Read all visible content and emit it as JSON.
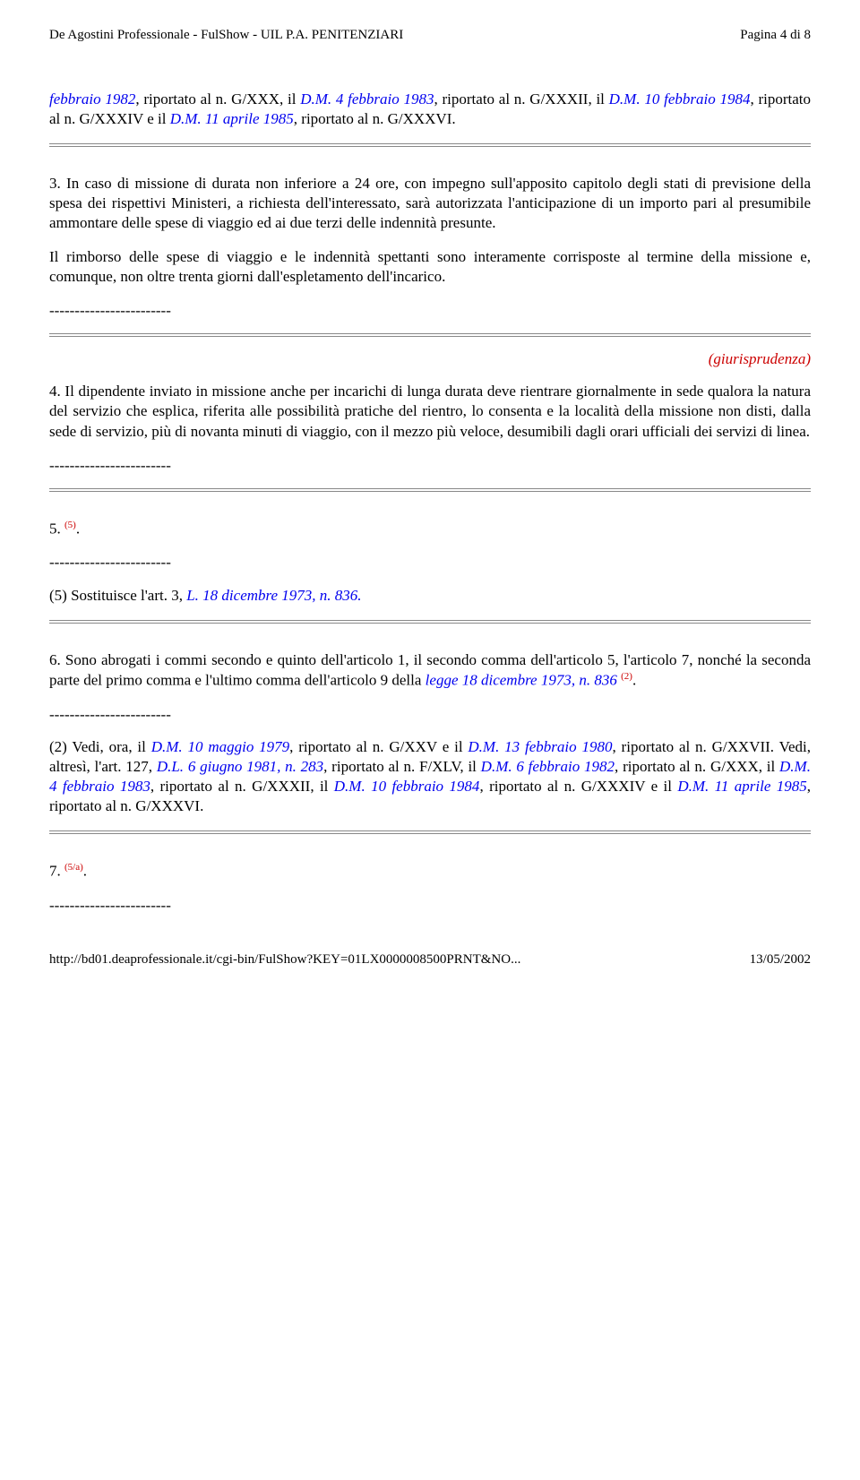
{
  "header": {
    "left": "De Agostini Professionale - FulShow - UIL P.A. PENITENZIARI",
    "right": "Pagina 4 di 8"
  },
  "intro": {
    "p1a": "febbraio 1982",
    "p1b": ", riportato al n. G/XXX, il ",
    "p1c": "D.M. 4 febbraio 1983",
    "p1d": ", riportato al n. G/XXXII, il ",
    "p1e": "D.M. 10 febbraio 1984",
    "p1f": ", riportato al n. G/XXXIV e il ",
    "p1g": "D.M. 11 aprile 1985",
    "p1h": ", riportato al n. G/XXXVI."
  },
  "art3": {
    "p1": "3. In caso di missione di durata non inferiore a 24 ore, con impegno sull'apposito capitolo degli stati di previsione della spesa dei rispettivi Ministeri, a richiesta dell'interessato, sarà autorizzata l'anticipazione di un importo pari al presumibile ammontare delle spese di viaggio ed ai due terzi delle indennità presunte.",
    "p2": "Il rimborso delle spese di viaggio e le indennità spettanti sono interamente corrisposte al termine della missione e, comunque, non oltre trenta giorni dall'espletamento dell'incarico."
  },
  "dashes": "------------------------",
  "giuris": "(giurisprudenza)",
  "art4": {
    "p1": "4. Il dipendente inviato in missione anche per incarichi di lunga durata deve rientrare giornalmente in sede qualora la natura del servizio che esplica, riferita alle possibilità pratiche del rientro, lo consenta e la località della missione non disti, dalla sede di servizio, più di novanta minuti di viaggio, con il mezzo più veloce, desumibili dagli orari ufficiali dei servizi di linea."
  },
  "art5": {
    "num": "5.",
    "sup": "(5)",
    "dot": ".",
    "note_a": "(5) Sostituisce l'art. 3, ",
    "note_b": "L. 18 dicembre 1973, n. 836."
  },
  "art6": {
    "p1a": "6. Sono abrogati i commi secondo e quinto dell'articolo 1, il secondo comma dell'articolo 5, l'articolo 7, nonché la seconda parte del primo comma e l'ultimo comma dell'articolo 9 della ",
    "p1b": "legge 18 dicembre 1973, n. 836",
    "p1c": " ",
    "p1sup": "(2)",
    "p1d": ".",
    "n2a": "(2) Vedi, ora, il ",
    "n2b": "D.M. 10 maggio 1979",
    "n2c": ", riportato al n. G/XXV e il ",
    "n2d": "D.M. 13 febbraio 1980",
    "n2e": ", riportato al n. G/XXVII. Vedi, altresì, l'art. 127, ",
    "n2f": "D.L. 6 giugno 1981, n. 283",
    "n2g": ", riportato al n. F/XLV, il ",
    "n2h": "D.M. 6 febbraio 1982",
    "n2i": ", riportato al n. G/XXX, il ",
    "n2j": "D.M. 4 febbraio 1983",
    "n2k": ", riportato al n. G/XXXII, il ",
    "n2l": "D.M. 10 febbraio 1984",
    "n2m": ", riportato al n. G/XXXIV e il ",
    "n2n": "D.M. 11 aprile 1985",
    "n2o": ", riportato al n. G/XXXVI."
  },
  "art7": {
    "num": "7.",
    "sup": "(5/a)",
    "dot": "."
  },
  "footer": {
    "left": "http://bd01.deaprofessionale.it/cgi-bin/FulShow?KEY=01LX0000008500PRNT&NO...",
    "right": "13/05/2002"
  }
}
